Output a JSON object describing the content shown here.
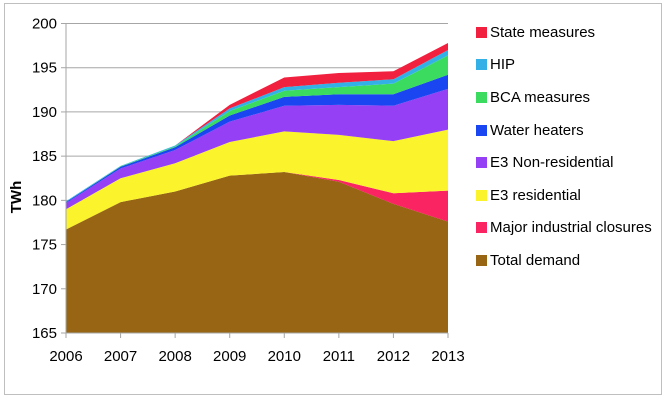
{
  "chart_data": {
    "type": "area",
    "stacked": true,
    "title": "",
    "xlabel": "",
    "ylabel": "TWh",
    "ylim": [
      165,
      200
    ],
    "yticks": [
      165,
      170,
      175,
      180,
      185,
      190,
      195,
      200
    ],
    "grid": true,
    "legend_position": "right",
    "categories": [
      "2006",
      "2007",
      "2008",
      "2009",
      "2010",
      "2011",
      "2012",
      "2013"
    ],
    "series": [
      {
        "name": "Total demand",
        "color": "#976513",
        "values": [
          176.7,
          179.8,
          181.0,
          182.8,
          183.2,
          182.1,
          179.6,
          177.6
        ]
      },
      {
        "name": "Major industrial closures",
        "color": "#fb2463",
        "values": [
          0,
          0,
          0,
          0,
          0,
          0.2,
          1.2,
          3.5
        ]
      },
      {
        "name": "E3 residential",
        "color": "#fbf42c",
        "values": [
          2.3,
          2.7,
          3.2,
          3.8,
          4.6,
          5.1,
          5.9,
          6.9
        ]
      },
      {
        "name": "E3 Non-residential",
        "color": "#9540f5",
        "values": [
          0.7,
          1.1,
          1.5,
          2.3,
          2.9,
          3.4,
          4.0,
          4.6
        ]
      },
      {
        "name": "Water heaters",
        "color": "#1946f0",
        "values": [
          0.1,
          0.2,
          0.3,
          0.7,
          1.0,
          1.2,
          1.3,
          1.6
        ]
      },
      {
        "name": "BCA measures",
        "color": "#3adb5e",
        "values": [
          0,
          0.05,
          0.1,
          0.5,
          0.7,
          0.8,
          1.2,
          2.2
        ]
      },
      {
        "name": "HIP",
        "color": "#33b1e6",
        "values": [
          0.1,
          0.05,
          0.1,
          0.3,
          0.4,
          0.5,
          0.5,
          0.6
        ]
      },
      {
        "name": "State measures",
        "color": "#f0203e",
        "values": [
          0,
          0,
          0,
          0.4,
          1.1,
          1.1,
          0.9,
          0.8
        ]
      }
    ],
    "legend_order": [
      "State measures",
      "HIP",
      "BCA measures",
      "Water heaters",
      "E3 Non-residential",
      "E3 residential",
      "Major industrial closures",
      "Total demand"
    ]
  }
}
